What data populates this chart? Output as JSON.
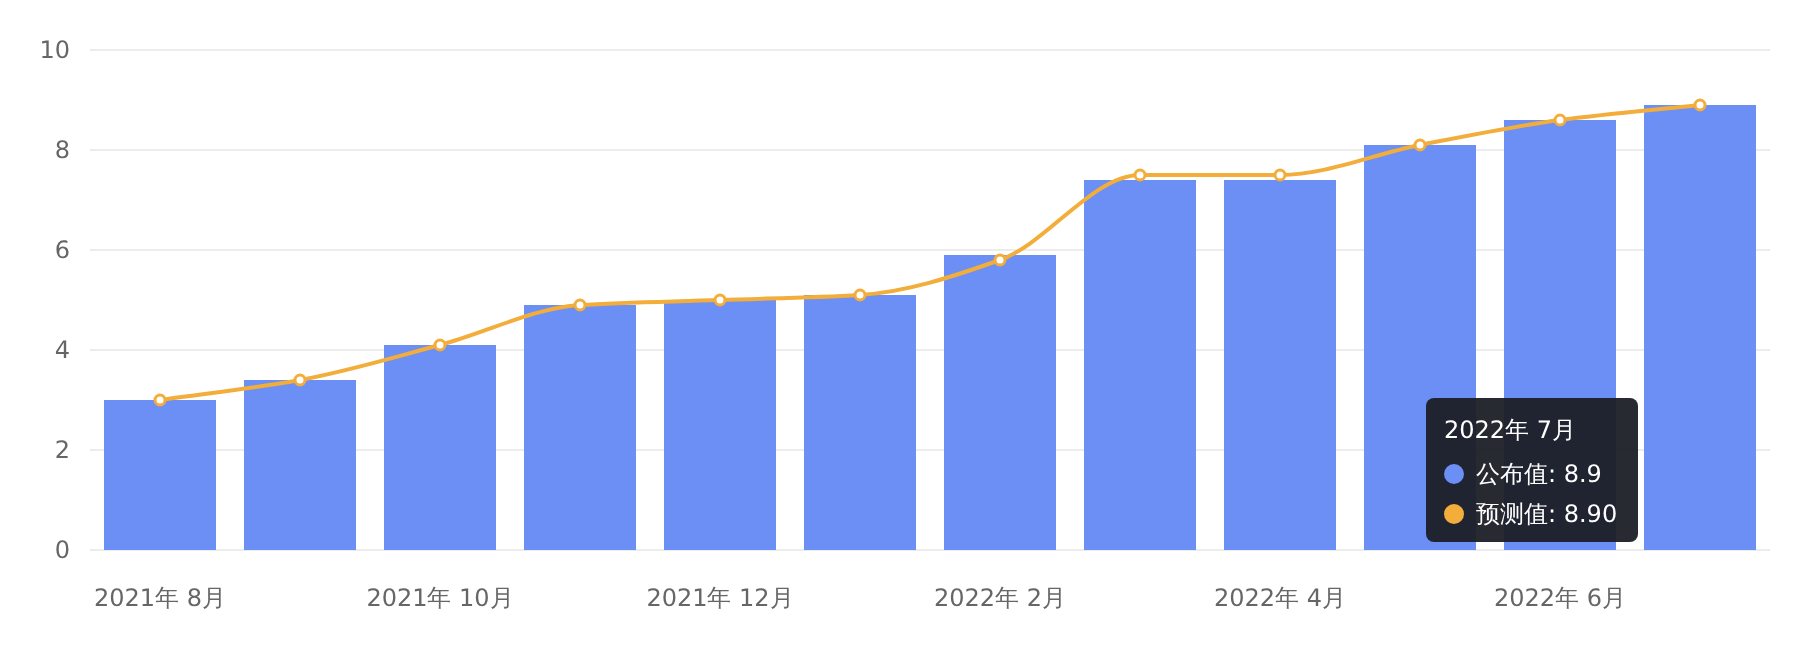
{
  "chart_data": {
    "type": "bar",
    "categories": [
      "2021年 8月",
      null,
      "2021年 10月",
      null,
      "2021年 12月",
      null,
      "2022年 2月",
      null,
      "2022年 4月",
      null,
      "2022年 6月",
      null
    ],
    "series": [
      {
        "color": "#6b8ff4",
        "values": [
          3.0,
          3.4,
          4.1,
          4.9,
          5.0,
          5.1,
          5.9,
          7.4,
          7.4,
          8.1,
          8.6,
          8.9
        ]
      },
      {
        "type": "line",
        "color": "#f2ad3b",
        "marker": "circle",
        "values": [
          3.0,
          3.4,
          4.1,
          4.9,
          5.0,
          5.1,
          5.8,
          7.5,
          7.5,
          8.1,
          8.6,
          8.9
        ]
      }
    ],
    "annotations": [
      "2022年 7月",
      "公布值: 8.9",
      "预测值: 8.90"
    ],
    "ylim": [
      0,
      10
    ],
    "yticks": [
      0,
      2,
      4,
      6,
      8,
      10
    ],
    "grid": "y"
  }
}
